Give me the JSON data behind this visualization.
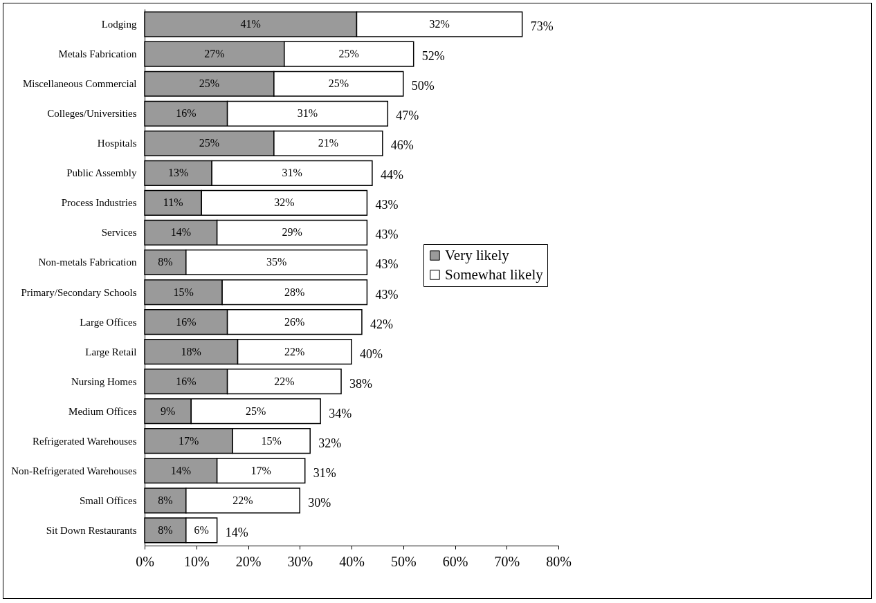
{
  "chart_data": {
    "type": "bar",
    "orientation": "horizontal",
    "stacked": true,
    "categories": [
      "Lodging",
      "Metals Fabrication",
      "Miscellaneous Commercial",
      "Colleges/Universities",
      "Hospitals",
      "Public Assembly",
      "Process Industries",
      "Services",
      "Non-metals Fabrication",
      "Primary/Secondary Schools",
      "Large Offices",
      "Large Retail",
      "Nursing Homes",
      "Medium Offices",
      "Refrigerated Warehouses",
      "Non-Refrigerated Warehouses",
      "Small Offices",
      "Sit Down Restaurants"
    ],
    "series": [
      {
        "name": "Very likely",
        "color": "#9a9a9a",
        "values": [
          41,
          27,
          25,
          16,
          25,
          13,
          11,
          14,
          8,
          15,
          16,
          18,
          16,
          9,
          17,
          14,
          8,
          8
        ],
        "value_labels": [
          "41%",
          "27%",
          "25%",
          "16%",
          "25%",
          "13%",
          "11%",
          "14%",
          "8%",
          "15%",
          "16%",
          "18%",
          "16%",
          "9%",
          "17%",
          "14%",
          "8%",
          "8%"
        ]
      },
      {
        "name": "Somewhat likely",
        "color": "#ffffff",
        "values": [
          32,
          25,
          25,
          31,
          21,
          31,
          32,
          29,
          35,
          28,
          26,
          22,
          22,
          25,
          15,
          17,
          22,
          6
        ],
        "value_labels": [
          "32%",
          "25%",
          "25%",
          "31%",
          "21%",
          "31%",
          "32%",
          "29%",
          "35%",
          "28%",
          "26%",
          "22%",
          "22%",
          "25%",
          "15%",
          "17%",
          "22%",
          "6%"
        ]
      }
    ],
    "totals": [
      "73%",
      "52%",
      "50%",
      "47%",
      "46%",
      "44%",
      "43%",
      "43%",
      "43%",
      "43%",
      "42%",
      "40%",
      "38%",
      "34%",
      "32%",
      "31%",
      "30%",
      "14%"
    ],
    "xlim": [
      0,
      80
    ],
    "xticks": [
      {
        "value": 0,
        "label": "0%"
      },
      {
        "value": 10,
        "label": "10%"
      },
      {
        "value": 20,
        "label": "20%"
      },
      {
        "value": 30,
        "label": "30%"
      },
      {
        "value": 40,
        "label": "40%"
      },
      {
        "value": 50,
        "label": "50%"
      },
      {
        "value": 60,
        "label": "60%"
      },
      {
        "value": 70,
        "label": "70%"
      },
      {
        "value": 80,
        "label": "80%"
      }
    ],
    "legend": "right"
  }
}
